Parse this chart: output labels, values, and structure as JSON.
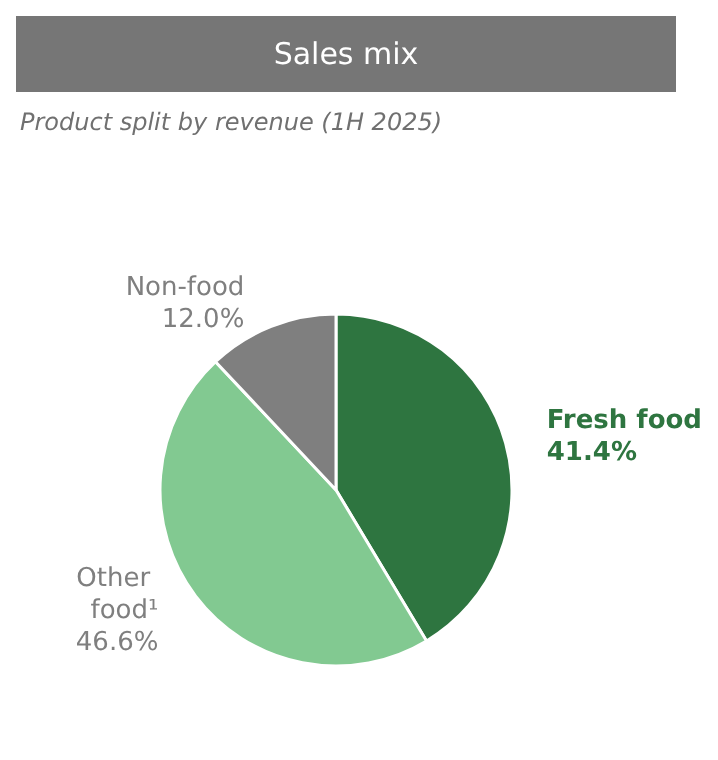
{
  "chart_data": {
    "type": "pie",
    "title": "Sales mix",
    "subtitle": "Product split by revenue (1H 2025)",
    "categories": [
      "Fresh food",
      "Other food¹",
      "Non-food"
    ],
    "values": [
      41.4,
      46.6,
      12.0
    ],
    "colors": [
      "#2e7540",
      "#82c991",
      "#7f7f7f"
    ],
    "value_labels": [
      "41.4%",
      "46.6%",
      "12.0%"
    ]
  }
}
